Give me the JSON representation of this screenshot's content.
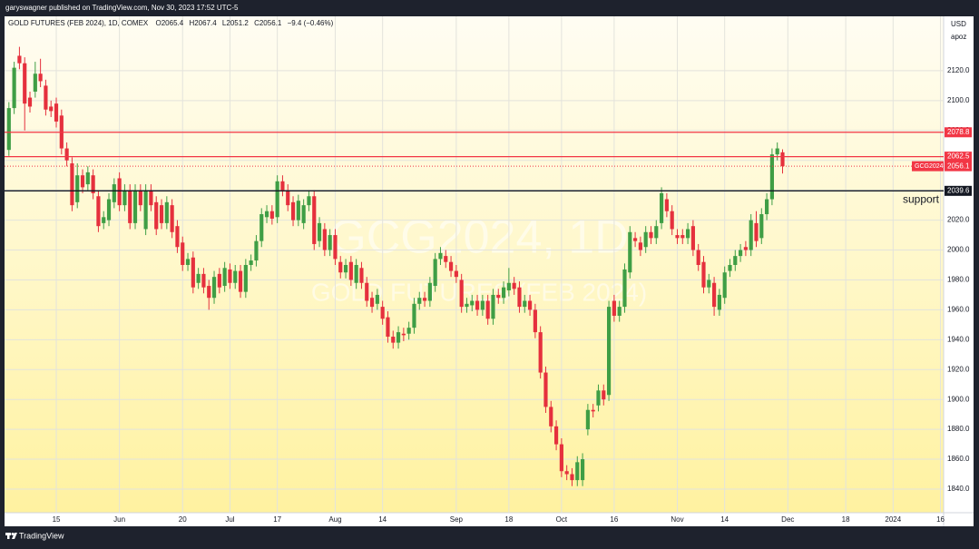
{
  "published": "garyswagner published on TradingView.com, Nov 30, 2023 17:52 UTC-5",
  "footer": "TradingView",
  "chart_data": {
    "type": "candlestick",
    "legend": {
      "symbol": "GOLD FUTURES (FEB 2024), 1D, COMEX",
      "open": "O2065.4",
      "high": "H2067.4",
      "low": "L2051.2",
      "close": "C2056.1",
      "change": "−9.4 (−0.46%)"
    },
    "currency": "USD",
    "unit": "apoz",
    "watermark": {
      "title": "GCG2024, 1D",
      "subtitle": "GOLD FUTURES (FEB 2024)"
    },
    "up_color": "#3f9e45",
    "down_color": "#e5303d",
    "grid": true,
    "xlim": [
      -0.83,
      177.6
    ],
    "ylim": [
      1824.2,
      2156.4
    ],
    "xticks": [
      {
        "value": 9,
        "label": "15"
      },
      {
        "value": 21,
        "label": "Jun"
      },
      {
        "value": 33,
        "label": "20"
      },
      {
        "value": 42,
        "label": "Jul"
      },
      {
        "value": 51,
        "label": "17"
      },
      {
        "value": 62,
        "label": "Aug"
      },
      {
        "value": 71,
        "label": "14"
      },
      {
        "value": 85,
        "label": "Sep"
      },
      {
        "value": 95,
        "label": "18"
      },
      {
        "value": 105,
        "label": "Oct"
      },
      {
        "value": 115,
        "label": "16"
      },
      {
        "value": 127,
        "label": "Nov"
      },
      {
        "value": 136,
        "label": "14"
      },
      {
        "value": 148,
        "label": "Dec"
      },
      {
        "value": 159,
        "label": "18"
      },
      {
        "value": 168,
        "label": "2024"
      },
      {
        "value": 177,
        "label": "16"
      }
    ],
    "yticks": [
      {
        "value": 1840,
        "label": "1840.0"
      },
      {
        "value": 1860,
        "label": "1860.0"
      },
      {
        "value": 1880,
        "label": "1880.0"
      },
      {
        "value": 1900,
        "label": "1900.0"
      },
      {
        "value": 1920,
        "label": "1920.0"
      },
      {
        "value": 1940,
        "label": "1940.0"
      },
      {
        "value": 1960,
        "label": "1960.0"
      },
      {
        "value": 1980,
        "label": "1980.0"
      },
      {
        "value": 2000,
        "label": "2000.0"
      },
      {
        "value": 2020,
        "label": "2020.0"
      },
      {
        "value": 2040,
        "label": "2040.0"
      },
      {
        "value": 2060,
        "label": "2060.0"
      },
      {
        "value": 2080,
        "label": "2080.0"
      },
      {
        "value": 2100,
        "label": "2100.0"
      },
      {
        "value": 2120,
        "label": "2120.0"
      }
    ],
    "hlines": [
      {
        "value": 2078.8,
        "color": "#f23645"
      },
      {
        "value": 2062.5,
        "color": "#f23645"
      },
      {
        "value": 2039.6,
        "color": "#131722",
        "annotation": "support"
      }
    ],
    "last_price": {
      "name": "GCG2024",
      "value": 2056.1,
      "color": "#f23645"
    },
    "x": [
      0,
      1,
      2,
      3,
      4,
      5,
      6,
      7,
      8,
      9,
      10,
      11,
      12,
      13,
      14,
      15,
      16,
      17,
      18,
      19,
      20,
      21,
      22,
      23,
      24,
      25,
      26,
      27,
      28,
      29,
      30,
      31,
      32,
      33,
      34,
      35,
      36,
      37,
      38,
      39,
      40,
      41,
      42,
      43,
      44,
      45,
      46,
      47,
      48,
      49,
      50,
      51,
      52,
      53,
      54,
      55,
      56,
      57,
      58,
      59,
      60,
      61,
      62,
      63,
      64,
      65,
      66,
      67,
      68,
      69,
      70,
      71,
      72,
      73,
      74,
      75,
      76,
      77,
      78,
      79,
      80,
      81,
      82,
      83,
      84,
      85,
      86,
      87,
      88,
      89,
      90,
      91,
      92,
      93,
      94,
      95,
      96,
      97,
      98,
      99,
      100,
      101,
      102,
      103,
      104,
      105,
      106,
      107,
      108,
      109,
      110,
      111,
      112,
      113,
      114,
      115,
      116,
      117,
      118,
      119,
      120,
      121,
      122,
      123,
      124,
      125,
      126,
      127,
      128,
      129,
      130,
      131,
      132,
      133,
      134,
      135,
      136,
      137,
      138,
      139,
      140,
      141,
      142,
      143,
      144,
      145,
      146,
      147
    ],
    "candles": [
      [
        2067,
        2099,
        2063,
        2095
      ],
      [
        2095,
        2126,
        2091,
        2122
      ],
      [
        2130,
        2136,
        2121,
        2125
      ],
      [
        2125,
        2129,
        2080,
        2098
      ],
      [
        2102,
        2106,
        2092,
        2096
      ],
      [
        2106,
        2126,
        2102,
        2118
      ],
      [
        2118,
        2128,
        2109,
        2113
      ],
      [
        2110,
        2114,
        2090,
        2094
      ],
      [
        2096,
        2100,
        2089,
        2093
      ],
      [
        2098,
        2102,
        2082,
        2086
      ],
      [
        2090,
        2094,
        2064,
        2068
      ],
      [
        2068,
        2072,
        2056,
        2060
      ],
      [
        2058,
        2062,
        2026,
        2030
      ],
      [
        2032,
        2058,
        2028,
        2050
      ],
      [
        2050,
        2054,
        2038,
        2042
      ],
      [
        2044,
        2056,
        2040,
        2052
      ],
      [
        2050,
        2054,
        2034,
        2038
      ],
      [
        2036,
        2040,
        2012,
        2016
      ],
      [
        2018,
        2026,
        2014,
        2022
      ],
      [
        2020,
        2038,
        2016,
        2034
      ],
      [
        2032,
        2048,
        2028,
        2044
      ],
      [
        2048,
        2052,
        2026,
        2030
      ],
      [
        2030,
        2044,
        2026,
        2040
      ],
      [
        2040,
        2044,
        2014,
        2018
      ],
      [
        2018,
        2044,
        2014,
        2040
      ],
      [
        2040,
        2044,
        2026,
        2030
      ],
      [
        2014,
        2044,
        2010,
        2040
      ],
      [
        2040,
        2044,
        2026,
        2030
      ],
      [
        2032,
        2036,
        2010,
        2014
      ],
      [
        2030,
        2034,
        2014,
        2018
      ],
      [
        2018,
        2036,
        2014,
        2032
      ],
      [
        2030,
        2034,
        2008,
        2012
      ],
      [
        2016,
        2020,
        1998,
        2002
      ],
      [
        2005,
        2009,
        1986,
        1990
      ],
      [
        1990,
        1998,
        1986,
        1994
      ],
      [
        1995,
        1999,
        1971,
        1975
      ],
      [
        1978,
        1988,
        1974,
        1984
      ],
      [
        1984,
        1988,
        1971,
        1975
      ],
      [
        1976,
        1980,
        1960,
        1968
      ],
      [
        1968,
        1986,
        1964,
        1982
      ],
      [
        1984,
        1988,
        1971,
        1975
      ],
      [
        1976,
        1992,
        1972,
        1988
      ],
      [
        1987,
        1991,
        1974,
        1978
      ],
      [
        1978,
        1990,
        1974,
        1986
      ],
      [
        1986,
        1990,
        1968,
        1972
      ],
      [
        1972,
        1994,
        1968,
        1990
      ],
      [
        1990,
        1997,
        1986,
        1993
      ],
      [
        1993,
        2010,
        1989,
        2006
      ],
      [
        2006,
        2028,
        2002,
        2024
      ],
      [
        2022,
        2030,
        2018,
        2026
      ],
      [
        2026,
        2030,
        2017,
        2021
      ],
      [
        2022,
        2050,
        2018,
        2046
      ],
      [
        2046,
        2050,
        2036,
        2040
      ],
      [
        2040,
        2044,
        2026,
        2030
      ],
      [
        2032,
        2036,
        2016,
        2020
      ],
      [
        2020,
        2037,
        2016,
        2033
      ],
      [
        2018,
        2034,
        2014,
        2030
      ],
      [
        2030,
        2040,
        2026,
        2036
      ],
      [
        2036,
        2040,
        2000,
        2004
      ],
      [
        2006,
        2022,
        2002,
        2018
      ],
      [
        2014,
        2018,
        1996,
        2000
      ],
      [
        2000,
        2014,
        1996,
        2010
      ],
      [
        2010,
        2014,
        1990,
        1994
      ],
      [
        1992,
        1996,
        1981,
        1985
      ],
      [
        1985,
        1994,
        1981,
        1990
      ],
      [
        1992,
        1996,
        1976,
        1980
      ],
      [
        1978,
        1994,
        1974,
        1990
      ],
      [
        1988,
        1992,
        1974,
        1978
      ],
      [
        1978,
        1982,
        1962,
        1966
      ],
      [
        1968,
        1972,
        1958,
        1962
      ],
      [
        1964,
        1974,
        1960,
        1970
      ],
      [
        1962,
        1966,
        1950,
        1954
      ],
      [
        1955,
        1959,
        1938,
        1942
      ],
      [
        1942,
        1946,
        1934,
        1938
      ],
      [
        1938,
        1949,
        1934,
        1945
      ],
      [
        1944,
        1948,
        1939,
        1943
      ],
      [
        1944,
        1952,
        1940,
        1948
      ],
      [
        1948,
        1968,
        1944,
        1964
      ],
      [
        1964,
        1972,
        1960,
        1968
      ],
      [
        1968,
        1972,
        1962,
        1966
      ],
      [
        1966,
        1982,
        1962,
        1978
      ],
      [
        1976,
        1998,
        1972,
        1994
      ],
      [
        1994,
        2002,
        1990,
        1998
      ],
      [
        1996,
        2000,
        1988,
        1992
      ],
      [
        1992,
        1996,
        1982,
        1986
      ],
      [
        1986,
        1990,
        1978,
        1982
      ],
      [
        1980,
        1984,
        1958,
        1962
      ],
      [
        1962,
        1968,
        1958,
        1964
      ],
      [
        1963,
        1970,
        1959,
        1966
      ],
      [
        1966,
        1970,
        1956,
        1960
      ],
      [
        1960,
        1970,
        1956,
        1966
      ],
      [
        1966,
        1970,
        1950,
        1954
      ],
      [
        1954,
        1974,
        1950,
        1970
      ],
      [
        1970,
        1974,
        1964,
        1968
      ],
      [
        1968,
        1979,
        1964,
        1975
      ],
      [
        1973,
        1988,
        1969,
        1978
      ],
      [
        1978,
        1982,
        1970,
        1974
      ],
      [
        1975,
        1979,
        1958,
        1962
      ],
      [
        1962,
        1970,
        1958,
        1966
      ],
      [
        1966,
        1970,
        1956,
        1960
      ],
      [
        1960,
        1964,
        1941,
        1945
      ],
      [
        1945,
        1949,
        1914,
        1918
      ],
      [
        1918,
        1922,
        1891,
        1895
      ],
      [
        1895,
        1899,
        1878,
        1882
      ],
      [
        1882,
        1886,
        1866,
        1870
      ],
      [
        1870,
        1874,
        1848,
        1852
      ],
      [
        1852,
        1856,
        1846,
        1850
      ],
      [
        1850,
        1854,
        1842,
        1846
      ],
      [
        1846,
        1862,
        1842,
        1858
      ],
      [
        1846,
        1864,
        1842,
        1860
      ],
      [
        1880,
        1897,
        1876,
        1893
      ],
      [
        1893,
        1897,
        1888,
        1892
      ],
      [
        1896,
        1910,
        1892,
        1906
      ],
      [
        1906,
        1910,
        1896,
        1900
      ],
      [
        1903,
        1966,
        1899,
        1962
      ],
      [
        1966,
        1970,
        1952,
        1956
      ],
      [
        1956,
        1966,
        1952,
        1962
      ],
      [
        1962,
        1991,
        1958,
        1987
      ],
      [
        1985,
        2016,
        1981,
        2012
      ],
      [
        2008,
        2012,
        2002,
        2006
      ],
      [
        2005,
        2009,
        1996,
        2000
      ],
      [
        2002,
        2016,
        1998,
        2012
      ],
      [
        2012,
        2016,
        2004,
        2008
      ],
      [
        2008,
        2020,
        2004,
        2016
      ],
      [
        2018,
        2042,
        2014,
        2038
      ],
      [
        2034,
        2038,
        2022,
        2026
      ],
      [
        2026,
        2030,
        2010,
        2014
      ],
      [
        2010,
        2014,
        2004,
        2008
      ],
      [
        2010,
        2014,
        2004,
        2008
      ],
      [
        2008,
        2018,
        2004,
        2014
      ],
      [
        2016,
        2020,
        1996,
        2000
      ],
      [
        2000,
        2004,
        1986,
        1990
      ],
      [
        1992,
        1996,
        1971,
        1975
      ],
      [
        1975,
        1984,
        1971,
        1980
      ],
      [
        1978,
        1982,
        1956,
        1962
      ],
      [
        1960,
        1974,
        1956,
        1970
      ],
      [
        1968,
        1989,
        1964,
        1985
      ],
      [
        1986,
        1994,
        1982,
        1990
      ],
      [
        1990,
        2000,
        1986,
        1996
      ],
      [
        1996,
        2004,
        1992,
        2000
      ],
      [
        2002,
        2006,
        1996,
        2000
      ],
      [
        2000,
        2024,
        1996,
        2020
      ],
      [
        2018,
        2026,
        2002,
        2006
      ],
      [
        2008,
        2028,
        2004,
        2024
      ],
      [
        2024,
        2038,
        2020,
        2034
      ],
      [
        2034,
        2068,
        2030,
        2064
      ],
      [
        2064,
        2072,
        2060,
        2068
      ],
      [
        2065.4,
        2067.4,
        2051.2,
        2056.1
      ]
    ]
  }
}
